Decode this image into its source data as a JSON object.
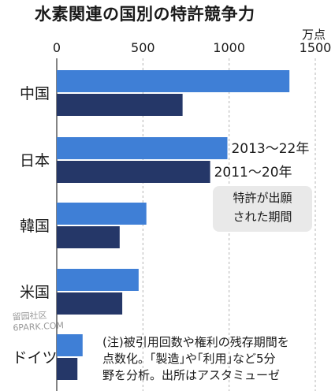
{
  "chart_data": {
    "type": "bar",
    "orientation": "horizontal",
    "title": "水素関連の国別の特許競争力",
    "unit": "万点",
    "categories": [
      "中国",
      "日本",
      "韓国",
      "米国",
      "ドイツ"
    ],
    "xlim": [
      0,
      1500
    ],
    "ticks": [
      0,
      500,
      1000,
      1500
    ],
    "grid": true,
    "series": [
      {
        "name": "2013～22年",
        "color": "#3f7fd6",
        "values": [
          1350,
          990,
          520,
          475,
          150
        ]
      },
      {
        "name": "2011～20年",
        "color": "#253768",
        "values": [
          730,
          890,
          365,
          380,
          120
        ]
      }
    ],
    "callout": {
      "lines": [
        "特許が出願",
        "された期間"
      ]
    },
    "note": {
      "lines": [
        "(注)被引用回数や権利の残存期間を",
        "点数化。｢製造｣や｢利用｣など5分",
        "野を分析。出所はアスタミューゼ"
      ]
    }
  },
  "watermark": {
    "lines": [
      "留园社区",
      "6PARK.COM"
    ]
  }
}
